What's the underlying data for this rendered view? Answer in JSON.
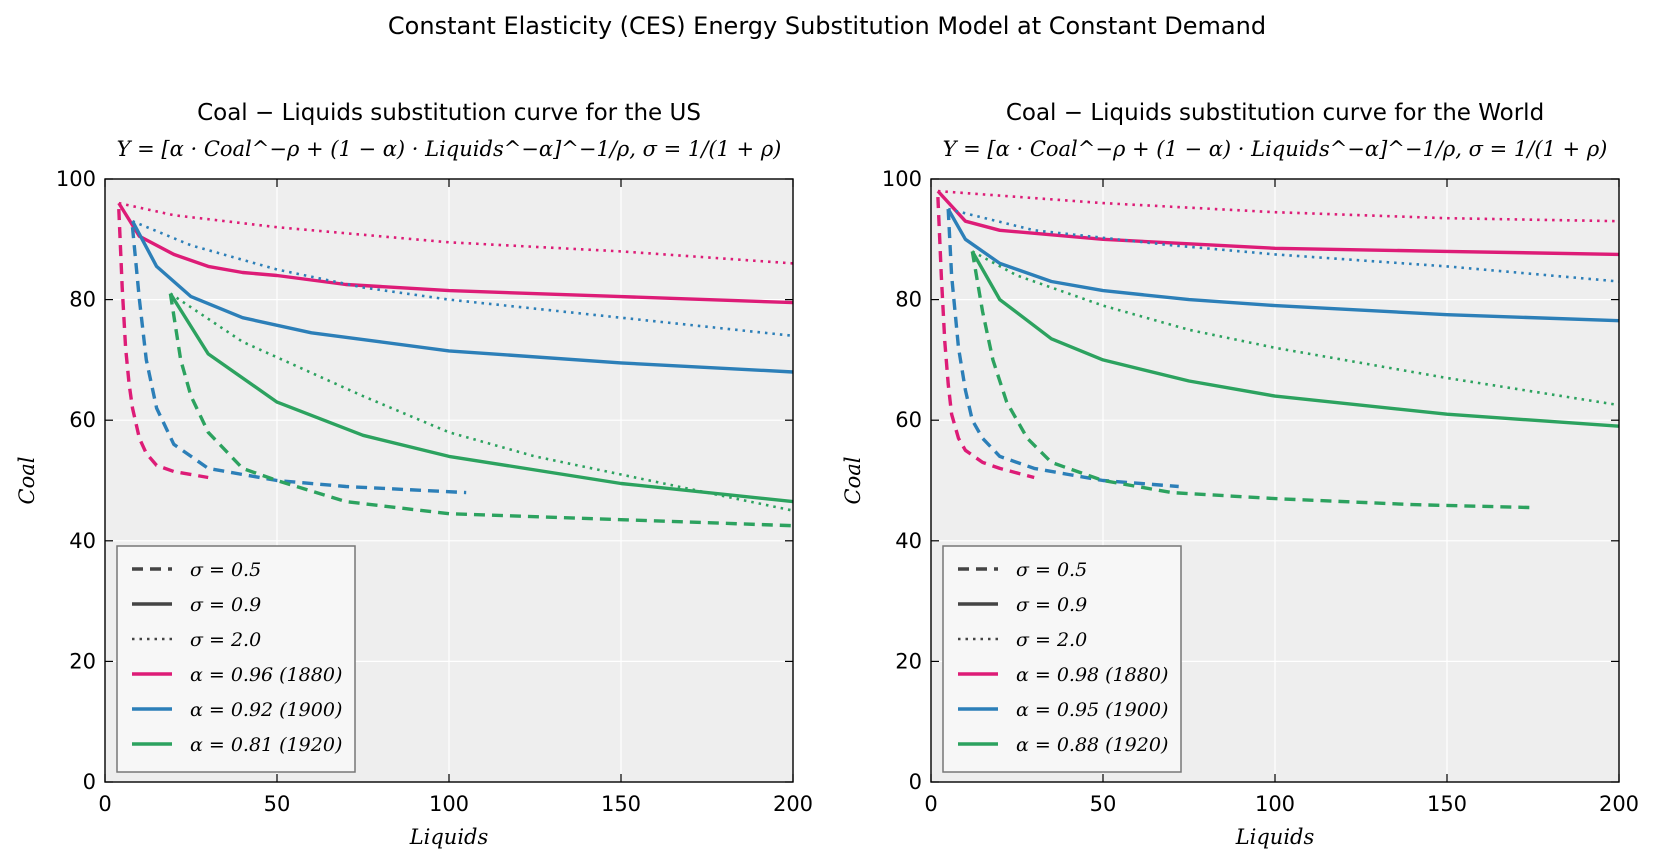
{
  "suptitle": "Constant Elasticity (CES) Energy Substitution Model at Constant Demand",
  "chart_data": [
    {
      "type": "line",
      "title": "Coal − Liquids substitution curve for the US",
      "subtitle": "Y = [α · Coal^−ρ + (1 − α) · Liquids^−α]^−1/ρ, σ = 1/(1 + ρ)",
      "xlabel": "Liquids",
      "ylabel": "Coal",
      "xlim": [
        0,
        200
      ],
      "ylim": [
        0,
        100
      ],
      "xticks": [
        "0",
        "50",
        "100",
        "150",
        "200"
      ],
      "yticks": [
        "0",
        "20",
        "40",
        "60",
        "80",
        "100"
      ],
      "grid": true,
      "legend_position": "lower-left",
      "legend": [
        {
          "label": "σ = 0.5",
          "style": "dashed",
          "color": "#444444"
        },
        {
          "label": "σ = 0.9",
          "style": "solid",
          "color": "#444444"
        },
        {
          "label": "σ = 2.0",
          "style": "dotted",
          "color": "#444444"
        },
        {
          "label": "α = 0.96 (1880)",
          "style": "solid",
          "color": "#dd1c77"
        },
        {
          "label": "α = 0.92 (1900)",
          "style": "solid",
          "color": "#2c7fb8"
        },
        {
          "label": "α = 0.81 (1920)",
          "style": "solid",
          "color": "#2ca25f"
        }
      ],
      "series": [
        {
          "alpha": "0.96",
          "sigma": "0.5",
          "style": "dashed",
          "color": "#dd1c77",
          "x": [
            4,
            5,
            6,
            7,
            8,
            10,
            12,
            15,
            20,
            30
          ],
          "y": [
            95,
            82,
            72,
            66,
            62,
            57,
            54.5,
            52.5,
            51.5,
            50.5
          ]
        },
        {
          "alpha": "0.96",
          "sigma": "0.9",
          "style": "solid",
          "color": "#dd1c77",
          "x": [
            4,
            10,
            20,
            30,
            40,
            50,
            70,
            100,
            150,
            200
          ],
          "y": [
            96,
            90.5,
            87.5,
            85.5,
            84.5,
            84,
            82.5,
            81.5,
            80.5,
            79.5
          ]
        },
        {
          "alpha": "0.96",
          "sigma": "2.0",
          "style": "dotted",
          "color": "#dd1c77",
          "x": [
            4,
            20,
            50,
            100,
            150,
            200
          ],
          "y": [
            96,
            94,
            92,
            89.5,
            88,
            86
          ]
        },
        {
          "alpha": "0.92",
          "sigma": "0.5",
          "style": "dashed",
          "color": "#2c7fb8",
          "x": [
            8,
            10,
            12,
            15,
            20,
            30,
            40,
            50,
            70,
            105
          ],
          "y": [
            92,
            80,
            70,
            62,
            56,
            52,
            51,
            50,
            49,
            48
          ]
        },
        {
          "alpha": "0.92",
          "sigma": "0.9",
          "style": "solid",
          "color": "#2c7fb8",
          "x": [
            8,
            15,
            25,
            40,
            60,
            80,
            100,
            150,
            200
          ],
          "y": [
            93,
            85.5,
            80.5,
            77,
            74.5,
            73,
            71.5,
            69.5,
            68
          ]
        },
        {
          "alpha": "0.92",
          "sigma": "2.0",
          "style": "dotted",
          "color": "#2c7fb8",
          "x": [
            8,
            25,
            50,
            75,
            100,
            150,
            200
          ],
          "y": [
            93,
            89,
            85,
            82,
            80,
            77,
            74
          ]
        },
        {
          "alpha": "0.81",
          "sigma": "0.5",
          "style": "dashed",
          "color": "#2ca25f",
          "x": [
            19,
            22,
            25,
            30,
            40,
            50,
            70,
            100,
            150,
            200
          ],
          "y": [
            81,
            70,
            64,
            58,
            52,
            50,
            46.5,
            44.5,
            43.5,
            42.5
          ]
        },
        {
          "alpha": "0.81",
          "sigma": "0.9",
          "style": "solid",
          "color": "#2ca25f",
          "x": [
            19,
            30,
            50,
            75,
            100,
            150,
            200
          ],
          "y": [
            81,
            71,
            63,
            57.5,
            54,
            49.5,
            46.5
          ]
        },
        {
          "alpha": "0.81",
          "sigma": "2.0",
          "style": "dotted",
          "color": "#2ca25f",
          "x": [
            19,
            40,
            75,
            100,
            125,
            150,
            175,
            200
          ],
          "y": [
            81,
            73,
            64,
            58,
            54,
            51,
            48,
            45
          ]
        }
      ]
    },
    {
      "type": "line",
      "title": "Coal − Liquids substitution curve for the World",
      "subtitle": "Y = [α · Coal^−ρ + (1 − α) · Liquids^−α]^−1/ρ, σ = 1/(1 + ρ)",
      "xlabel": "Liquids",
      "ylabel": "Coal",
      "xlim": [
        0,
        200
      ],
      "ylim": [
        0,
        100
      ],
      "xticks": [
        "0",
        "50",
        "100",
        "150",
        "200"
      ],
      "yticks": [
        "0",
        "20",
        "40",
        "60",
        "80",
        "100"
      ],
      "grid": true,
      "legend_position": "lower-left",
      "legend": [
        {
          "label": "σ = 0.5",
          "style": "dashed",
          "color": "#444444"
        },
        {
          "label": "σ = 0.9",
          "style": "solid",
          "color": "#444444"
        },
        {
          "label": "σ = 2.0",
          "style": "dotted",
          "color": "#444444"
        },
        {
          "label": "α = 0.98 (1880)",
          "style": "solid",
          "color": "#dd1c77"
        },
        {
          "label": "α = 0.95 (1900)",
          "style": "solid",
          "color": "#2c7fb8"
        },
        {
          "label": "α = 0.88 (1920)",
          "style": "solid",
          "color": "#2ca25f"
        }
      ],
      "series": [
        {
          "alpha": "0.98",
          "sigma": "0.5",
          "style": "dashed",
          "color": "#dd1c77",
          "x": [
            2,
            3,
            4,
            5,
            6,
            8,
            10,
            15,
            20,
            30
          ],
          "y": [
            97,
            84,
            73,
            66,
            61,
            57,
            55,
            53,
            52,
            50.5
          ]
        },
        {
          "alpha": "0.98",
          "sigma": "0.9",
          "style": "solid",
          "color": "#dd1c77",
          "x": [
            2,
            10,
            20,
            50,
            100,
            150,
            200
          ],
          "y": [
            98,
            93,
            91.5,
            90,
            88.5,
            88,
            87.5
          ]
        },
        {
          "alpha": "0.98",
          "sigma": "2.0",
          "style": "dotted",
          "color": "#dd1c77",
          "x": [
            2,
            50,
            100,
            150,
            200
          ],
          "y": [
            98,
            96,
            94.5,
            93.5,
            93
          ]
        },
        {
          "alpha": "0.95",
          "sigma": "0.5",
          "style": "dashed",
          "color": "#2c7fb8",
          "x": [
            5,
            6,
            8,
            10,
            12,
            15,
            20,
            30,
            40,
            50,
            72
          ],
          "y": [
            95,
            84,
            72,
            65,
            60,
            57,
            54,
            52,
            51,
            50,
            49
          ]
        },
        {
          "alpha": "0.95",
          "sigma": "0.9",
          "style": "solid",
          "color": "#2c7fb8",
          "x": [
            5,
            10,
            20,
            35,
            50,
            75,
            100,
            150,
            200
          ],
          "y": [
            95,
            90,
            86,
            83,
            81.5,
            80,
            79,
            77.5,
            76.5
          ]
        },
        {
          "alpha": "0.95",
          "sigma": "2.0",
          "style": "dotted",
          "color": "#2c7fb8",
          "x": [
            5,
            30,
            70,
            100,
            150,
            200
          ],
          "y": [
            95,
            91.5,
            89,
            87.5,
            85.5,
            83
          ]
        },
        {
          "alpha": "0.88",
          "sigma": "0.5",
          "style": "dashed",
          "color": "#2ca25f",
          "x": [
            12,
            15,
            18,
            22,
            28,
            35,
            50,
            70,
            100,
            140,
            175
          ],
          "y": [
            88,
            78,
            70,
            63,
            57,
            53,
            50,
            48,
            47,
            46,
            45.5
          ]
        },
        {
          "alpha": "0.88",
          "sigma": "0.9",
          "style": "solid",
          "color": "#2ca25f",
          "x": [
            12,
            20,
            35,
            50,
            75,
            100,
            150,
            200
          ],
          "y": [
            88,
            80,
            73.5,
            70,
            66.5,
            64,
            61,
            59
          ]
        },
        {
          "alpha": "0.88",
          "sigma": "2.0",
          "style": "dotted",
          "color": "#2ca25f",
          "x": [
            12,
            25,
            50,
            75,
            100,
            150,
            200
          ],
          "y": [
            88,
            84,
            79,
            75,
            72,
            67,
            62.5
          ]
        }
      ]
    }
  ]
}
